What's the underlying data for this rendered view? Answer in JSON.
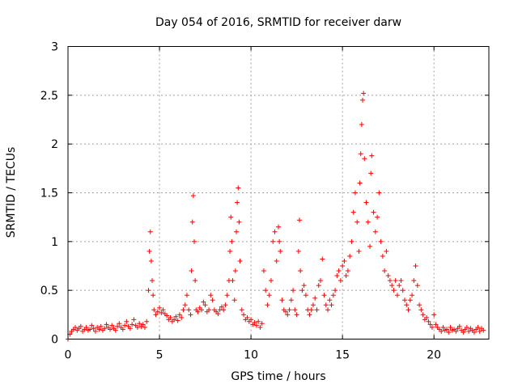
{
  "chart_data": {
    "type": "scatter",
    "title": "Day 054 of 2016, SRMTID for receiver darw",
    "xlabel": "GPS time / hours",
    "ylabel": "SRMTID / TECUs",
    "xlim": [
      0,
      23
    ],
    "ylim": [
      0,
      3
    ],
    "x_ticks": [
      "0",
      "5",
      "10",
      "15",
      "20"
    ],
    "y_ticks": [
      "0",
      "0.5",
      "1",
      "1.5",
      "2",
      "2.5",
      "3"
    ],
    "grid": true,
    "marker": "+",
    "series_color": "#ff0000",
    "series": [
      {
        "name": "SRMTID",
        "points": [
          [
            0.0,
            0.0
          ],
          [
            0.1,
            0.05
          ],
          [
            0.2,
            0.08
          ],
          [
            0.3,
            0.1
          ],
          [
            0.4,
            0.12
          ],
          [
            0.5,
            0.09
          ],
          [
            0.6,
            0.11
          ],
          [
            0.7,
            0.13
          ],
          [
            0.8,
            0.08
          ],
          [
            0.9,
            0.1
          ],
          [
            1.0,
            0.12
          ],
          [
            1.1,
            0.09
          ],
          [
            1.2,
            0.1
          ],
          [
            1.3,
            0.14
          ],
          [
            1.4,
            0.11
          ],
          [
            1.5,
            0.08
          ],
          [
            1.6,
            0.12
          ],
          [
            1.7,
            0.1
          ],
          [
            1.8,
            0.13
          ],
          [
            1.9,
            0.09
          ],
          [
            2.0,
            0.11
          ],
          [
            2.1,
            0.15
          ],
          [
            2.2,
            0.12
          ],
          [
            2.3,
            0.1
          ],
          [
            2.4,
            0.14
          ],
          [
            2.5,
            0.11
          ],
          [
            2.6,
            0.09
          ],
          [
            2.7,
            0.13
          ],
          [
            2.8,
            0.16
          ],
          [
            2.9,
            0.12
          ],
          [
            3.0,
            0.1
          ],
          [
            3.1,
            0.14
          ],
          [
            3.2,
            0.18
          ],
          [
            3.3,
            0.13
          ],
          [
            3.4,
            0.11
          ],
          [
            3.5,
            0.15
          ],
          [
            3.6,
            0.2
          ],
          [
            3.7,
            0.14
          ],
          [
            3.8,
            0.12
          ],
          [
            3.9,
            0.16
          ],
          [
            4.0,
            0.13
          ],
          [
            4.1,
            0.15
          ],
          [
            4.2,
            0.12
          ],
          [
            4.3,
            0.18
          ],
          [
            4.4,
            0.5
          ],
          [
            4.45,
            0.9
          ],
          [
            4.5,
            1.1
          ],
          [
            4.55,
            0.8
          ],
          [
            4.6,
            0.6
          ],
          [
            4.65,
            0.45
          ],
          [
            4.7,
            0.3
          ],
          [
            4.8,
            0.25
          ],
          [
            4.9,
            0.28
          ],
          [
            5.0,
            0.32
          ],
          [
            5.1,
            0.27
          ],
          [
            5.2,
            0.3
          ],
          [
            5.3,
            0.26
          ],
          [
            5.4,
            0.24
          ],
          [
            5.5,
            0.2
          ],
          [
            5.6,
            0.22
          ],
          [
            5.7,
            0.18
          ],
          [
            5.8,
            0.2
          ],
          [
            5.9,
            0.23
          ],
          [
            6.0,
            0.19
          ],
          [
            6.1,
            0.25
          ],
          [
            6.2,
            0.22
          ],
          [
            6.3,
            0.3
          ],
          [
            6.4,
            0.35
          ],
          [
            6.5,
            0.45
          ],
          [
            6.6,
            0.3
          ],
          [
            6.7,
            0.25
          ],
          [
            6.75,
            0.7
          ],
          [
            6.8,
            1.2
          ],
          [
            6.85,
            1.47
          ],
          [
            6.9,
            1.0
          ],
          [
            6.95,
            0.6
          ],
          [
            7.0,
            0.3
          ],
          [
            7.1,
            0.28
          ],
          [
            7.2,
            0.32
          ],
          [
            7.3,
            0.3
          ],
          [
            7.4,
            0.38
          ],
          [
            7.5,
            0.35
          ],
          [
            7.6,
            0.28
          ],
          [
            7.7,
            0.3
          ],
          [
            7.8,
            0.45
          ],
          [
            7.9,
            0.4
          ],
          [
            8.0,
            0.3
          ],
          [
            8.1,
            0.28
          ],
          [
            8.2,
            0.26
          ],
          [
            8.3,
            0.3
          ],
          [
            8.4,
            0.33
          ],
          [
            8.5,
            0.3
          ],
          [
            8.6,
            0.35
          ],
          [
            8.7,
            0.45
          ],
          [
            8.8,
            0.6
          ],
          [
            8.85,
            0.9
          ],
          [
            8.9,
            1.25
          ],
          [
            8.95,
            1.0
          ],
          [
            9.0,
            0.6
          ],
          [
            9.1,
            0.4
          ],
          [
            9.15,
            0.7
          ],
          [
            9.2,
            1.1
          ],
          [
            9.25,
            1.4
          ],
          [
            9.3,
            1.55
          ],
          [
            9.35,
            1.2
          ],
          [
            9.4,
            0.8
          ],
          [
            9.5,
            0.3
          ],
          [
            9.6,
            0.25
          ],
          [
            9.7,
            0.2
          ],
          [
            9.8,
            0.22
          ],
          [
            9.9,
            0.18
          ],
          [
            10.0,
            0.2
          ],
          [
            10.1,
            0.15
          ],
          [
            10.2,
            0.17
          ],
          [
            10.3,
            0.14
          ],
          [
            10.4,
            0.18
          ],
          [
            10.5,
            0.12
          ],
          [
            10.6,
            0.16
          ],
          [
            10.7,
            0.7
          ],
          [
            10.8,
            0.5
          ],
          [
            10.9,
            0.35
          ],
          [
            11.0,
            0.45
          ],
          [
            11.1,
            0.6
          ],
          [
            11.2,
            1.0
          ],
          [
            11.3,
            1.1
          ],
          [
            11.4,
            0.8
          ],
          [
            11.5,
            1.15
          ],
          [
            11.55,
            1.0
          ],
          [
            11.6,
            0.9
          ],
          [
            11.7,
            0.4
          ],
          [
            11.8,
            0.3
          ],
          [
            11.9,
            0.28
          ],
          [
            12.0,
            0.25
          ],
          [
            12.1,
            0.3
          ],
          [
            12.2,
            0.4
          ],
          [
            12.3,
            0.5
          ],
          [
            12.4,
            0.3
          ],
          [
            12.5,
            0.25
          ],
          [
            12.6,
            0.9
          ],
          [
            12.65,
            1.22
          ],
          [
            12.7,
            0.7
          ],
          [
            12.8,
            0.5
          ],
          [
            12.9,
            0.55
          ],
          [
            13.0,
            0.45
          ],
          [
            13.1,
            0.3
          ],
          [
            13.2,
            0.25
          ],
          [
            13.3,
            0.3
          ],
          [
            13.4,
            0.35
          ],
          [
            13.5,
            0.42
          ],
          [
            13.6,
            0.3
          ],
          [
            13.7,
            0.55
          ],
          [
            13.8,
            0.6
          ],
          [
            13.9,
            0.82
          ],
          [
            14.0,
            0.45
          ],
          [
            14.1,
            0.35
          ],
          [
            14.2,
            0.3
          ],
          [
            14.3,
            0.4
          ],
          [
            14.4,
            0.35
          ],
          [
            14.5,
            0.45
          ],
          [
            14.6,
            0.5
          ],
          [
            14.7,
            0.65
          ],
          [
            14.8,
            0.7
          ],
          [
            14.9,
            0.6
          ],
          [
            15.0,
            0.75
          ],
          [
            15.1,
            0.8
          ],
          [
            15.2,
            0.65
          ],
          [
            15.3,
            0.7
          ],
          [
            15.4,
            0.85
          ],
          [
            15.5,
            1.0
          ],
          [
            15.6,
            1.3
          ],
          [
            15.7,
            1.5
          ],
          [
            15.8,
            1.2
          ],
          [
            15.9,
            0.9
          ],
          [
            15.95,
            1.6
          ],
          [
            16.0,
            1.9
          ],
          [
            16.05,
            2.2
          ],
          [
            16.1,
            2.45
          ],
          [
            16.15,
            2.52
          ],
          [
            16.2,
            1.85
          ],
          [
            16.3,
            1.4
          ],
          [
            16.4,
            1.2
          ],
          [
            16.5,
            0.95
          ],
          [
            16.55,
            1.7
          ],
          [
            16.6,
            1.88
          ],
          [
            16.7,
            1.3
          ],
          [
            16.8,
            1.1
          ],
          [
            16.9,
            1.25
          ],
          [
            17.0,
            1.5
          ],
          [
            17.1,
            1.0
          ],
          [
            17.2,
            0.85
          ],
          [
            17.3,
            0.7
          ],
          [
            17.4,
            0.9
          ],
          [
            17.5,
            0.65
          ],
          [
            17.6,
            0.6
          ],
          [
            17.7,
            0.55
          ],
          [
            17.8,
            0.5
          ],
          [
            17.9,
            0.6
          ],
          [
            18.0,
            0.45
          ],
          [
            18.1,
            0.55
          ],
          [
            18.2,
            0.6
          ],
          [
            18.3,
            0.5
          ],
          [
            18.4,
            0.4
          ],
          [
            18.5,
            0.35
          ],
          [
            18.6,
            0.3
          ],
          [
            18.7,
            0.4
          ],
          [
            18.8,
            0.45
          ],
          [
            18.9,
            0.6
          ],
          [
            19.0,
            0.75
          ],
          [
            19.1,
            0.55
          ],
          [
            19.2,
            0.35
          ],
          [
            19.3,
            0.3
          ],
          [
            19.4,
            0.25
          ],
          [
            19.5,
            0.2
          ],
          [
            19.6,
            0.22
          ],
          [
            19.7,
            0.18
          ],
          [
            19.8,
            0.15
          ],
          [
            19.9,
            0.12
          ],
          [
            20.0,
            0.25
          ],
          [
            20.1,
            0.15
          ],
          [
            20.2,
            0.12
          ],
          [
            20.3,
            0.1
          ],
          [
            20.4,
            0.08
          ],
          [
            20.5,
            0.12
          ],
          [
            20.6,
            0.09
          ],
          [
            20.7,
            0.1
          ],
          [
            20.8,
            0.07
          ],
          [
            20.9,
            0.12
          ],
          [
            21.0,
            0.09
          ],
          [
            21.1,
            0.1
          ],
          [
            21.2,
            0.08
          ],
          [
            21.3,
            0.11
          ],
          [
            21.4,
            0.13
          ],
          [
            21.5,
            0.09
          ],
          [
            21.6,
            0.07
          ],
          [
            21.7,
            0.1
          ],
          [
            21.8,
            0.12
          ],
          [
            21.9,
            0.08
          ],
          [
            22.0,
            0.11
          ],
          [
            22.1,
            0.09
          ],
          [
            22.2,
            0.07
          ],
          [
            22.3,
            0.1
          ],
          [
            22.4,
            0.12
          ],
          [
            22.5,
            0.08
          ],
          [
            22.6,
            0.11
          ],
          [
            22.7,
            0.09
          ]
        ]
      }
    ]
  }
}
